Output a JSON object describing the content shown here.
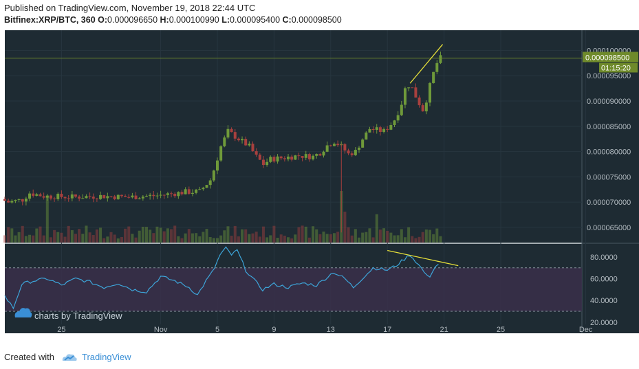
{
  "header": {
    "published": "Published on TradingView.com, November 19, 2018 22:44 UTC",
    "symbol": "Bitfinex:XRP/BTC, 360",
    "o_label": "O:",
    "o_value": "0.000096650",
    "h_label": "H:",
    "h_value": "0.000100990",
    "l_label": "L:",
    "l_value": "0.000095400",
    "c_label": "C:",
    "c_value": "0.000098500"
  },
  "footer": {
    "created_with": "Created with",
    "brand": "TradingView"
  },
  "watermark": "charts by TradingView",
  "colors": {
    "background": "#1e2b33",
    "up": "#6f9a3a",
    "down": "#a8403e",
    "rsi_line": "#3da5d9",
    "rsi_band": "#3a2f4a",
    "trendline": "#e6e03a",
    "price_label": "#6f8a2b",
    "axis_text": "#b4bcc2",
    "grid": "#27363f"
  },
  "chart_data": [
    {
      "type": "candlestick",
      "title": "Bitfinex:XRP/BTC, 360",
      "ylim": [
        6.2e-05,
        0.000104
      ],
      "y_ticks": [
        "0.000100000",
        "0.000095000",
        "0.000090000",
        "0.000085000",
        "0.000080000",
        "0.000075000",
        "0.000070000",
        "0.000065000"
      ],
      "y_tick_values": [
        0.0001,
        9.5e-05,
        9e-05,
        8.5e-05,
        8e-05,
        7.5e-05,
        7e-05,
        6.5e-05
      ],
      "x_ticks": [
        "25",
        "Nov",
        "5",
        "9",
        "13",
        "17",
        "21",
        "25",
        "Dec"
      ],
      "x_tick_days": [
        25,
        32,
        36,
        40,
        44,
        48,
        52,
        56,
        62
      ],
      "last_price_label": "0.000098500",
      "countdown_label": "01:15:20",
      "last_price": 9.85e-05,
      "anchors": [
        [
          21.0,
          7.06e-05
        ],
        [
          21.5,
          7e-05
        ],
        [
          22.5,
          7.05e-05
        ],
        [
          23.0,
          7.18e-05
        ],
        [
          24.0,
          7.12e-05
        ],
        [
          26.0,
          7.1e-05
        ],
        [
          28.0,
          7.12e-05
        ],
        [
          30.0,
          7.1e-05
        ],
        [
          32.0,
          7.13e-05
        ],
        [
          34.0,
          7.2e-05
        ],
        [
          35.0,
          7.21e-05
        ],
        [
          35.8,
          7.45e-05
        ],
        [
          36.5,
          8.1e-05
        ],
        [
          37.0,
          8.4e-05
        ],
        [
          37.5,
          8.3e-05
        ],
        [
          38.0,
          8.2e-05
        ],
        [
          38.5,
          8.1e-05
        ],
        [
          39.0,
          7.9e-05
        ],
        [
          39.5,
          7.75e-05
        ],
        [
          40.0,
          7.85e-05
        ],
        [
          41.0,
          7.88e-05
        ],
        [
          42.0,
          7.92e-05
        ],
        [
          43.0,
          7.9e-05
        ],
        [
          43.5,
          7.98e-05
        ],
        [
          44.0,
          8.12e-05
        ],
        [
          44.5,
          8.2e-05
        ],
        [
          45.0,
          8.1e-05
        ],
        [
          45.5,
          7.95e-05
        ],
        [
          46.0,
          8e-05
        ],
        [
          46.5,
          8.25e-05
        ],
        [
          47.0,
          8.45e-05
        ],
        [
          48.0,
          8.4e-05
        ],
        [
          48.7,
          8.6e-05
        ],
        [
          49.2,
          8.9e-05
        ],
        [
          49.6,
          9.35e-05
        ],
        [
          50.0,
          9.25e-05
        ],
        [
          50.4,
          9e-05
        ],
        [
          50.8,
          8.8e-05
        ],
        [
          51.2,
          9.25e-05
        ],
        [
          51.6,
          9.65e-05
        ],
        [
          51.9,
          9.85e-05
        ]
      ],
      "rsi": {
        "ylim": [
          18,
          92
        ],
        "y_ticks": [
          "80.0000",
          "60.0000",
          "40.0000",
          "20.0000"
        ],
        "y_tick_values": [
          80,
          60,
          40,
          20
        ],
        "band": [
          30,
          70
        ],
        "anchors": [
          [
            21,
            44
          ],
          [
            21.6,
            33
          ],
          [
            22.2,
            55
          ],
          [
            23,
            58
          ],
          [
            24,
            60
          ],
          [
            25,
            54
          ],
          [
            26,
            60
          ],
          [
            27,
            57
          ],
          [
            28,
            52
          ],
          [
            29,
            56
          ],
          [
            30,
            50
          ],
          [
            31,
            48
          ],
          [
            32,
            62
          ],
          [
            33,
            58
          ],
          [
            34,
            52
          ],
          [
            34.6,
            45
          ],
          [
            35.2,
            58
          ],
          [
            35.7,
            67
          ],
          [
            36.2,
            82
          ],
          [
            36.6,
            88
          ],
          [
            37.0,
            82
          ],
          [
            37.4,
            86
          ],
          [
            38.0,
            68
          ],
          [
            38.5,
            60
          ],
          [
            39.2,
            50
          ],
          [
            40,
            55
          ],
          [
            41,
            52
          ],
          [
            42,
            56
          ],
          [
            43,
            54
          ],
          [
            43.6,
            60
          ],
          [
            44.2,
            66
          ],
          [
            45,
            60
          ],
          [
            45.6,
            52
          ],
          [
            46.2,
            60
          ],
          [
            47,
            70
          ],
          [
            48,
            68
          ],
          [
            48.6,
            72
          ],
          [
            49.2,
            78
          ],
          [
            49.6,
            82
          ],
          [
            50.0,
            76
          ],
          [
            50.5,
            68
          ],
          [
            50.9,
            60
          ],
          [
            51.3,
            70
          ],
          [
            51.8,
            76
          ]
        ]
      },
      "trendlines": [
        {
          "pane": "price",
          "from": [
            49.6,
            9.35e-05
          ],
          "to": [
            51.9,
            0.0001012
          ]
        },
        {
          "pane": "rsi",
          "from": [
            48.0,
            86
          ],
          "to": [
            53.0,
            72
          ]
        }
      ],
      "volume_spikes": [
        [
          23.9,
          0.9
        ],
        [
          44.7,
          1.0
        ],
        [
          45.0,
          0.6
        ],
        [
          47.2,
          0.55
        ]
      ]
    }
  ]
}
